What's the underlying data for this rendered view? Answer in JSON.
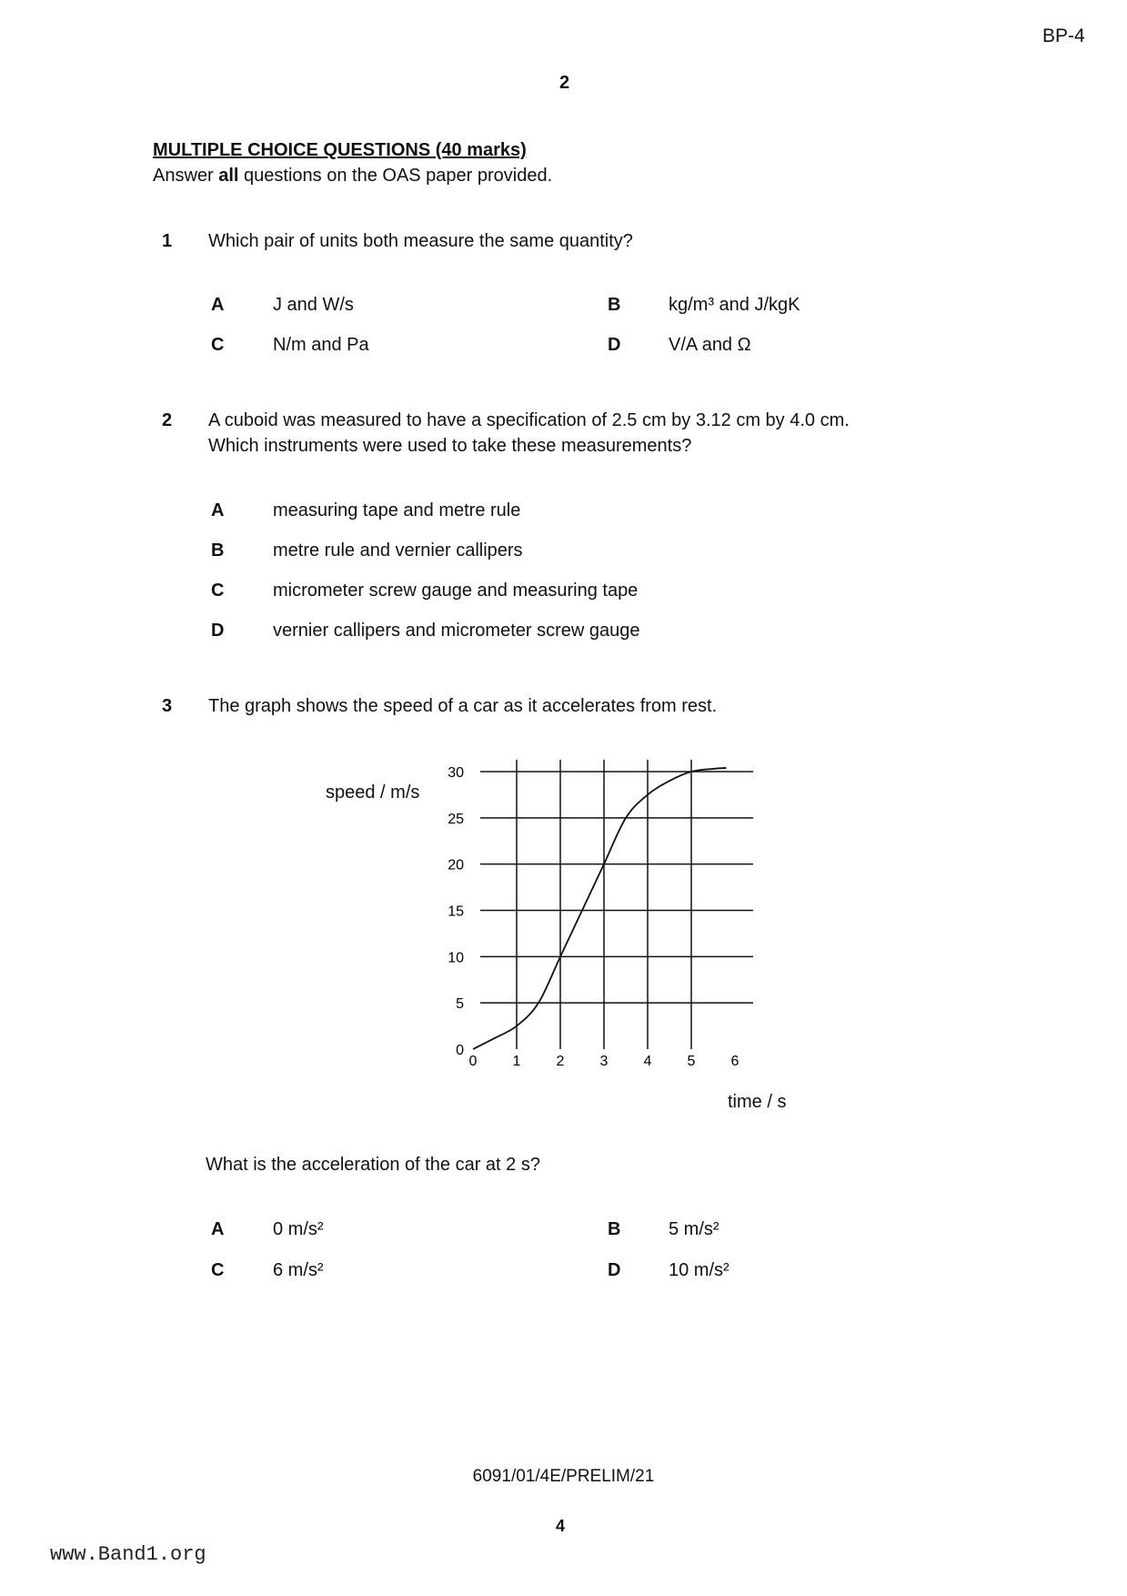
{
  "header": {
    "code": "BP-4",
    "page_number": "2"
  },
  "section": {
    "title": "MULTIPLE CHOICE QUESTIONS (40 marks)",
    "instruction_pre": "Answer ",
    "instruction_bold": "all",
    "instruction_post": " questions on the OAS paper provided."
  },
  "questions": [
    {
      "number": "1",
      "text": [
        "Which pair of units both measure the same quantity?"
      ],
      "options": [
        {
          "letter": "A",
          "text": "J and W/s"
        },
        {
          "letter": "B",
          "text": "kg/m³ and J/kgK"
        },
        {
          "letter": "C",
          "text": "N/m and Pa"
        },
        {
          "letter": "D",
          "text": "V/A and Ω"
        }
      ]
    },
    {
      "number": "2",
      "text": [
        "A cuboid was measured to have a specification of 2.5 cm by 3.12 cm by 4.0 cm.",
        "Which instruments were used to take these measurements?"
      ],
      "options": [
        {
          "letter": "A",
          "text": "measuring tape and metre rule"
        },
        {
          "letter": "B",
          "text": "metre rule and vernier callipers"
        },
        {
          "letter": "C",
          "text": "micrometer screw gauge and measuring tape"
        },
        {
          "letter": "D",
          "text": "vernier callipers and micrometer screw gauge"
        }
      ]
    },
    {
      "number": "3",
      "text": [
        "The graph shows the speed of a car as it accelerates from rest."
      ],
      "followup": "What is the acceleration of the car at 2 s?",
      "options": [
        {
          "letter": "A",
          "text": "0 m/s²"
        },
        {
          "letter": "B",
          "text": "5 m/s²"
        },
        {
          "letter": "C",
          "text": "6 m/s²"
        },
        {
          "letter": "D",
          "text": "10 m/s²"
        }
      ]
    }
  ],
  "chart_data": {
    "type": "line",
    "xlabel": "time / s",
    "ylabel": "speed / m/s",
    "xlim": [
      0,
      6
    ],
    "ylim": [
      0,
      30
    ],
    "xticks": [
      "0",
      "1",
      "2",
      "3",
      "4",
      "5",
      "6"
    ],
    "yticks": [
      "0",
      "5",
      "10",
      "15",
      "20",
      "25",
      "30"
    ],
    "grid": true,
    "x": [
      0,
      0.5,
      1,
      1.5,
      2,
      2.5,
      3,
      3.5,
      4,
      4.5,
      5,
      5.5,
      5.8
    ],
    "y": [
      0,
      1.2,
      2.5,
      5,
      10,
      15,
      20,
      25,
      27.5,
      29,
      30,
      30.3,
      30.4
    ]
  },
  "footer": {
    "paper_code": "6091/01/4E/PRELIM/21",
    "page": "4",
    "watermark": "www.Band1.org"
  }
}
